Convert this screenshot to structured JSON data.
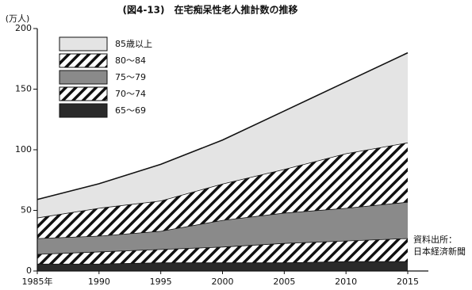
{
  "chart_data": {
    "type": "stacked-area",
    "title": "(図4-13)　在宅痴呆性老人推計数の推移",
    "y_label": "(万人)",
    "annotations": [
      "資料出所：",
      "日本経済新聞"
    ],
    "x": [
      1985,
      1990,
      1995,
      2000,
      2005,
      2010,
      2015
    ],
    "xlim": [
      1985,
      2015
    ],
    "xticks": [
      {
        "value": 1985,
        "label": "1985年"
      },
      1990,
      1995,
      2000,
      2005,
      2010,
      2015
    ],
    "ylim": [
      0,
      200
    ],
    "yticks": [
      0,
      50,
      100,
      150,
      200
    ],
    "legend": "upper-left",
    "series": [
      {
        "name": "65～69",
        "color": "#2a2a2a",
        "pattern": "solid",
        "values": [
          6,
          6,
          7,
          7,
          7,
          8,
          8
        ]
      },
      {
        "name": "70～74",
        "color": "#111111",
        "pattern": "hatch",
        "values": [
          8,
          10,
          11,
          13,
          16,
          17,
          19
        ]
      },
      {
        "name": "75～79",
        "color": "#8a8a8a",
        "pattern": "solid",
        "values": [
          13,
          13,
          15,
          22,
          25,
          27,
          30
        ]
      },
      {
        "name": "80～84",
        "color": "#111111",
        "pattern": "hatch",
        "values": [
          17,
          23,
          25,
          30,
          36,
          45,
          49
        ]
      },
      {
        "name": "85歳以上",
        "color": "#e4e4e4",
        "pattern": "solid",
        "values": [
          15,
          20,
          30,
          36,
          48,
          59,
          74
        ]
      }
    ]
  }
}
